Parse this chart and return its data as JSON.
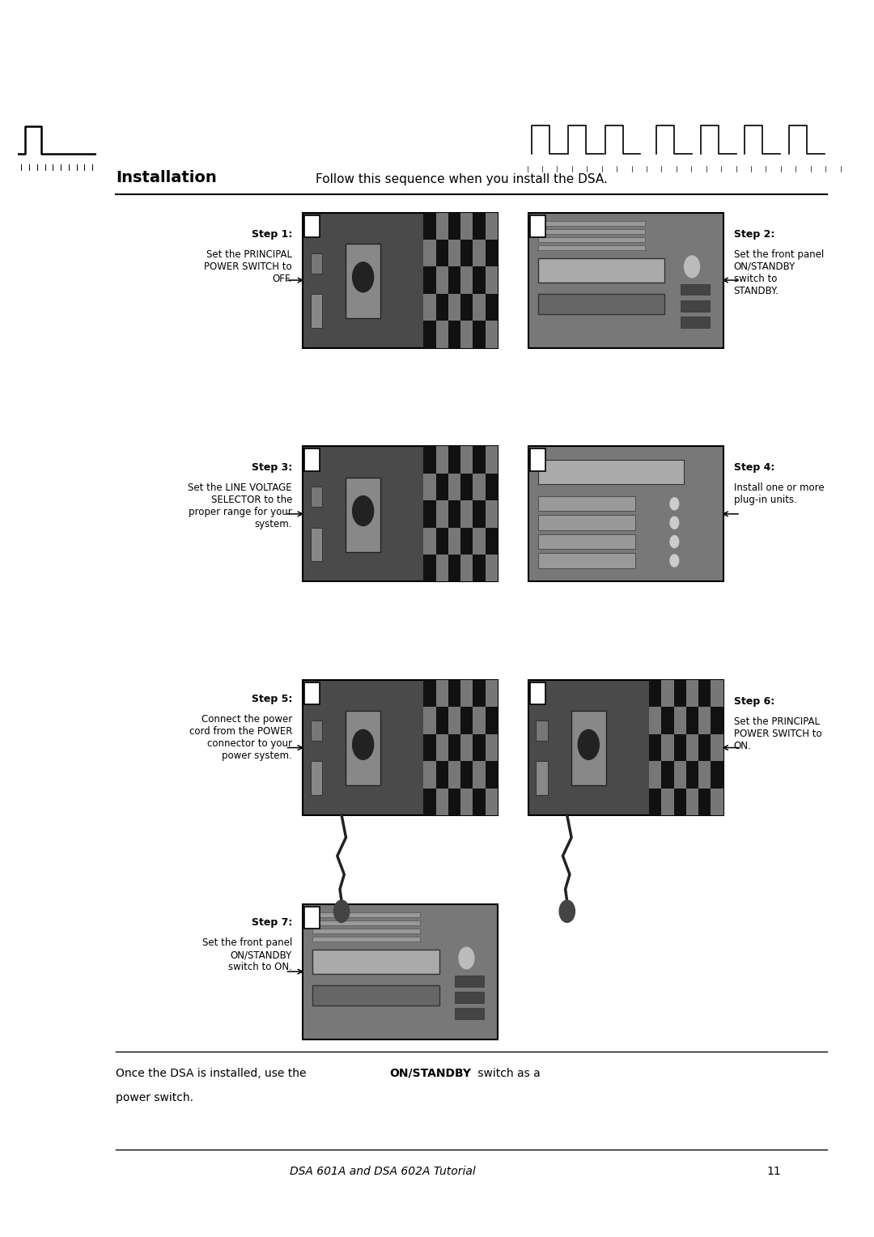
{
  "page_width": 10.8,
  "page_height": 15.28,
  "background_color": "#ffffff",
  "title_left": "Installation",
  "title_right": "Follow this sequence when you install the DSA.",
  "steps": [
    {
      "number": 1,
      "label": "Step 1:",
      "description": "Set the PRINCIPAL\nPOWER SWITCH to\nOFF.",
      "position": "left",
      "row": 0
    },
    {
      "number": 2,
      "label": "Step 2:",
      "description": "Set the front panel\nON/STANDBY\nswitch to\nSTANDBY.",
      "position": "right",
      "row": 0
    },
    {
      "number": 3,
      "label": "Step 3:",
      "description": "Set the LINE VOLTAGE\nSELECTOR to the\nproper range for your\nsystem.",
      "position": "left",
      "row": 1
    },
    {
      "number": 4,
      "label": "Step 4:",
      "description": "Install one or more\nplug-in units.",
      "position": "right",
      "row": 1
    },
    {
      "number": 5,
      "label": "Step 5:",
      "description": "Connect the power\ncord from the POWER\nconnector to your\npower system.",
      "position": "left",
      "row": 2
    },
    {
      "number": 6,
      "label": "Step 6:",
      "description": "Set the PRINCIPAL\nPOWER SWITCH to\nON.",
      "position": "right",
      "row": 2
    },
    {
      "number": 7,
      "label": "Step 7:",
      "description": "Set the front panel\nON/STANDBY\nswitch to ON.",
      "position": "left",
      "row": 3
    }
  ],
  "footer_line1": "Once the DSA is installed, use the ",
  "footer_bold": "ON/STANDBY",
  "footer_line1_end": " switch as a",
  "footer_line2": "power switch.",
  "page_label": "DSA 601A and DSA 602A Tutorial",
  "page_number": "11",
  "text_color": "#000000",
  "box_color": "#000000",
  "line_color": "#000000",
  "left_wave_bg": "#cccccc",
  "right_wave_bg": "#bbbbbb"
}
